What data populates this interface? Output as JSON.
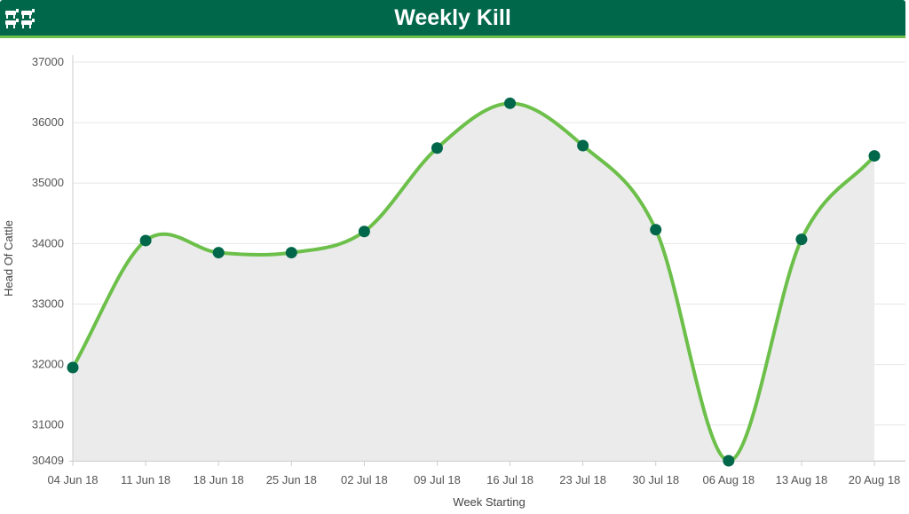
{
  "header": {
    "title": "Weekly Kill",
    "icon": "cattle-icon",
    "background": "#00674a",
    "accent": "#6cc04a"
  },
  "chart_data": {
    "type": "area",
    "title": "Weekly Kill",
    "xlabel": "Week Starting",
    "ylabel": "Head Of Cattle",
    "categories": [
      "04 Jun 18",
      "11 Jun 18",
      "18 Jun 18",
      "25 Jun 18",
      "02 Jul 18",
      "09 Jul 18",
      "16 Jul 18",
      "23 Jul 18",
      "30 Jul 18",
      "06 Aug 18",
      "13 Aug 18",
      "20 Aug 18"
    ],
    "values": [
      31950,
      34050,
      33850,
      33850,
      34200,
      35580,
      36320,
      35620,
      34230,
      30409,
      34070,
      35450
    ],
    "ylim": [
      30409,
      37000
    ],
    "yticks": [
      30409,
      31000,
      32000,
      33000,
      34000,
      35000,
      36000,
      37000
    ],
    "grid": true,
    "line_color": "#6cc04a",
    "marker_color": "#00674a",
    "fill_color": "#ebebeb"
  }
}
